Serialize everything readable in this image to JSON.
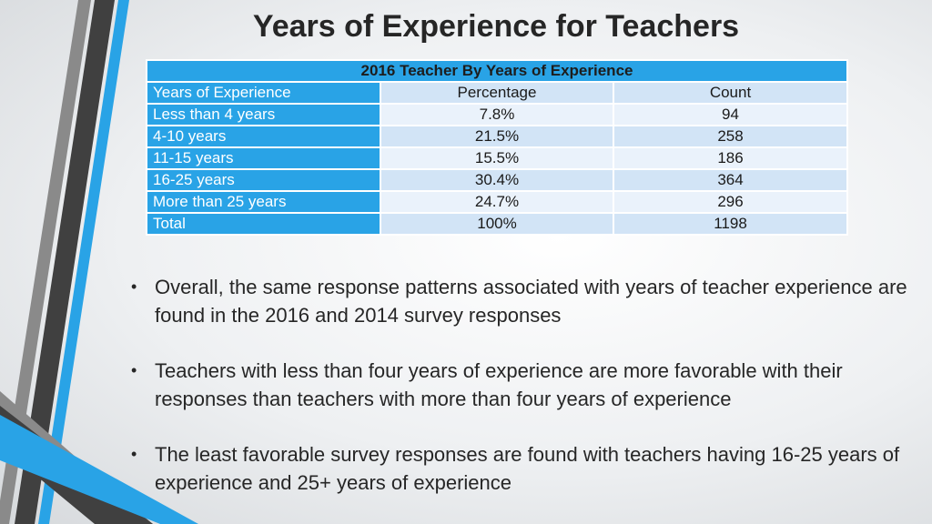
{
  "slide": {
    "title": "Years of Experience for Teachers"
  },
  "table": {
    "caption": "2016  Teacher By Years of Experience",
    "headers": [
      "Years of Experience",
      "Percentage",
      "Count"
    ],
    "rows": [
      [
        "Less than 4 years",
        "7.8%",
        "94"
      ],
      [
        "4-10 years",
        "21.5%",
        "258"
      ],
      [
        "11-15 years",
        "15.5%",
        "186"
      ],
      [
        "16-25 years",
        "30.4%",
        "364"
      ],
      [
        "More than 25 years",
        "24.7%",
        "296"
      ],
      [
        "Total",
        "100%",
        "1198"
      ]
    ]
  },
  "bullets": [
    "Overall, the same response patterns associated with years of teacher experience are found in the 2016 and 2014 survey responses",
    "Teachers with less than four years of experience are more favorable with their responses than teachers with more than four years of experience",
    "The least favorable survey responses are found with teachers having 16-25 years of experience and 25+ years of experience"
  ],
  "colors": {
    "accent_blue": "#29a3e6",
    "row_light": "#eaf2fb",
    "row_mid": "#d2e4f6",
    "stripe_dark": "#404040",
    "stripe_gray": "#8a8a8a"
  }
}
